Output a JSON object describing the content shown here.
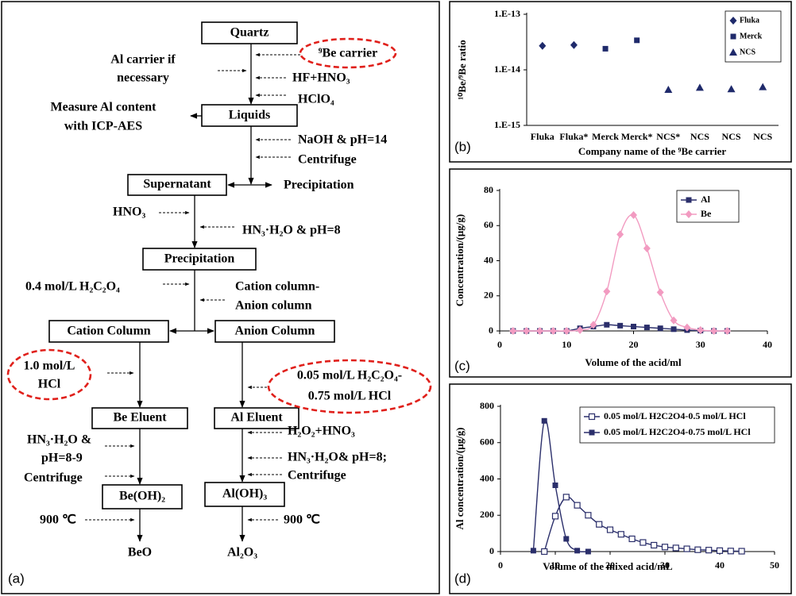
{
  "flowchart": {
    "panel_label": "(a)",
    "nodes": [
      "Quartz",
      "Liquids",
      "Supernatant",
      "Precipitation",
      "Precipitation",
      "Cation Column",
      "Anion Column",
      "Be Eluent",
      "Al Eluent",
      "Be(OH)₂",
      "Al(OH)₃",
      "BeO",
      "Al₂O₃"
    ],
    "notes": [
      [
        "⁹Be carrier"
      ],
      [
        "Al carrier if",
        "necessary"
      ],
      [
        "HF+HNO₃"
      ],
      [
        "HClO₄"
      ],
      [
        "Measure Al content",
        "with ICP-AES"
      ],
      [
        "NaOH & pH=14"
      ],
      [
        "Centrifuge"
      ],
      [
        "HNO₃"
      ],
      [
        "HN₃·H₂O & pH=8"
      ],
      [
        "0.4 mol/L H₂C₂O₄"
      ],
      [
        "Cation column-",
        "Anion column"
      ],
      [
        "1.0 mol/L",
        "HCl"
      ],
      [
        "0.05 mol/L H₂C₂O₄-",
        "0.75 mol/L HCl"
      ],
      [
        "HN₃·H₂O &",
        "pH=8-9",
        "Centrifuge"
      ],
      [
        "H₂O₂+HNO₃"
      ],
      [
        "HN₃·H₂O& pH=8;",
        "Centrifuge"
      ],
      [
        "900 ℃"
      ],
      [
        "900 ℃"
      ]
    ]
  },
  "chart_data": [
    {
      "type": "scatter",
      "panel_label": "(b)",
      "xlabel": "Company name of the ⁹Be carrier",
      "ylabel": "¹⁰Be/⁹Be ratio",
      "categories": [
        "Fluka",
        "Fluka*",
        "Merck",
        "Merck*",
        "NCS*",
        "NCS",
        "NCS",
        "NCS"
      ],
      "yscale": "log",
      "ylim": [
        1e-15,
        1e-13
      ],
      "yticks": [
        {
          "value": 1e-13,
          "label": "1.E-13"
        },
        {
          "value": 1e-14,
          "label": "1.E-14"
        },
        {
          "value": 1e-15,
          "label": "1.E-15"
        }
      ],
      "legend": "upper right",
      "series": [
        {
          "name": "Fluka",
          "color": "#1f2a6b",
          "marker": "diamond",
          "values": [
            2.7e-14,
            2.8e-14,
            null,
            null,
            null,
            null,
            null,
            null
          ]
        },
        {
          "name": "Merck",
          "color": "#1f2a6b",
          "marker": "square",
          "values": [
            null,
            null,
            2.4e-14,
            3.4e-14,
            null,
            null,
            null,
            null
          ]
        },
        {
          "name": "NCS",
          "color": "#1f2a6b",
          "marker": "triangle",
          "values": [
            null,
            null,
            null,
            null,
            4.4e-15,
            4.8e-15,
            4.5e-15,
            4.9e-15
          ]
        }
      ]
    },
    {
      "type": "line",
      "panel_label": "(c)",
      "xlabel": "Volume of the acid/ml",
      "ylabel": "Concentration/(μg/g)",
      "xlim": [
        0,
        40
      ],
      "xticks": [
        0,
        10,
        20,
        30,
        40
      ],
      "ylim": [
        0,
        80
      ],
      "yticks": [
        0,
        20,
        40,
        60,
        80
      ],
      "legend": "upper right",
      "x": [
        2,
        4,
        6,
        8,
        10,
        12,
        14,
        16,
        18,
        20,
        22,
        24,
        26,
        28,
        30,
        32,
        34
      ],
      "series": [
        {
          "name": "Al",
          "color": "#2b2f6b",
          "marker": "square",
          "values": [
            0,
            0,
            0,
            0,
            0,
            1.5,
            2.5,
            3.5,
            3,
            2.5,
            2,
            1.5,
            1,
            0.5,
            0.2,
            0,
            0
          ]
        },
        {
          "name": "Be",
          "color": "#f29bc1",
          "marker": "diamond",
          "values": [
            0,
            0,
            0,
            0,
            0,
            0.5,
            3.5,
            22.5,
            55,
            66,
            47,
            22,
            6,
            2,
            0.5,
            0,
            0
          ]
        }
      ]
    },
    {
      "type": "line",
      "panel_label": "(d)",
      "xlabel": "Volume of the mixed acid/mL",
      "ylabel": "Al concentration/(μg/g)",
      "xlim": [
        0,
        50
      ],
      "xticks": [
        0,
        10,
        20,
        30,
        40,
        50
      ],
      "ylim": [
        0,
        800
      ],
      "yticks": [
        0,
        200,
        400,
        600,
        800
      ],
      "legend": "upper right",
      "series": [
        {
          "name": "0.05 mol/L H2C2O4-0.5 mol/L HCl",
          "color": "#2b2f6b",
          "marker": "open-square",
          "x": [
            8,
            10,
            12,
            14,
            16,
            18,
            20,
            22,
            24,
            26,
            28,
            30,
            32,
            34,
            36,
            38,
            40,
            42,
            44
          ],
          "values": [
            0,
            195,
            300,
            255,
            200,
            150,
            120,
            95,
            70,
            50,
            35,
            25,
            20,
            15,
            10,
            8,
            5,
            3,
            2
          ]
        },
        {
          "name": "0.05 mol/L H2C2O4-0.75 mol/L HCl",
          "color": "#2b2f6b",
          "marker": "square",
          "x": [
            6,
            8,
            10,
            12,
            14,
            16
          ],
          "values": [
            5,
            720,
            365,
            70,
            5,
            0
          ]
        }
      ]
    }
  ]
}
